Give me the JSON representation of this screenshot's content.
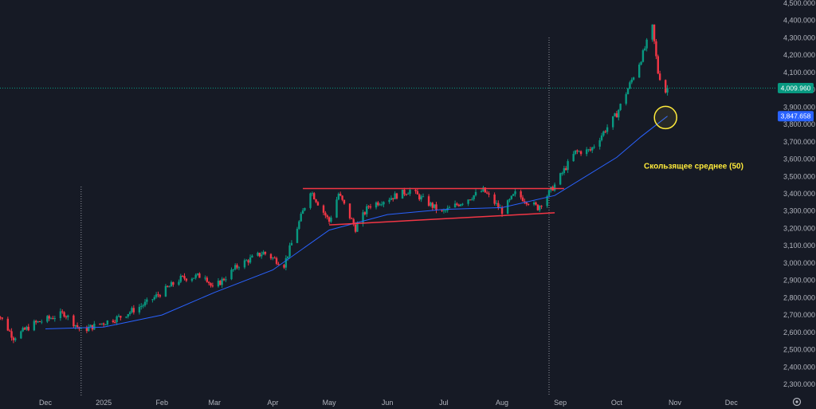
{
  "chart_data": {
    "type": "candlestick",
    "title": "",
    "xlabel": "",
    "ylabel": "",
    "ylim": [
      2250,
      4500
    ],
    "grid": false,
    "y_ticks": [
      "4,500.000",
      "4,400.000",
      "4,300.000",
      "4,200.000",
      "4,100.000",
      "4,000.000",
      "3,900.000",
      "3,800.000",
      "3,700.000",
      "3,600.000",
      "3,500.000",
      "3,400.000",
      "3,300.000",
      "3,200.000",
      "3,100.000",
      "3,000.000",
      "2,900.000",
      "2,800.000",
      "2,700.000",
      "2,600.000",
      "2,500.000",
      "2,400.000",
      "2,300.000"
    ],
    "y_tick_values": [
      4500,
      4400,
      4300,
      4200,
      4100,
      4000,
      3900,
      3800,
      3700,
      3600,
      3500,
      3400,
      3300,
      3200,
      3100,
      3000,
      2900,
      2800,
      2700,
      2600,
      2500,
      2400,
      2300
    ],
    "x_ticks": [
      "Dec",
      "2025",
      "Feb",
      "Mar",
      "Apr",
      "May",
      "Jun",
      "Jul",
      "Aug",
      "Sep",
      "Oct",
      "Nov",
      "Dec"
    ],
    "x_tick_dates": [
      "2024-12-01",
      "2025-01-01",
      "2025-02-01",
      "2025-03-01",
      "2025-04-01",
      "2025-05-01",
      "2025-06-01",
      "2025-07-01",
      "2025-08-01",
      "2025-09-01",
      "2025-10-01",
      "2025-11-01",
      "2025-12-01"
    ],
    "price_anchors": [
      [
        "2024-11-04",
        2740
      ],
      [
        "2024-11-14",
        2570
      ],
      [
        "2024-11-25",
        2650
      ],
      [
        "2024-12-11",
        2710
      ],
      [
        "2024-12-20",
        2610
      ],
      [
        "2025-01-10",
        2690
      ],
      [
        "2025-01-24",
        2770
      ],
      [
        "2025-02-11",
        2910
      ],
      [
        "2025-02-24",
        2930
      ],
      [
        "2025-02-28",
        2850
      ],
      [
        "2025-03-14",
        2990
      ],
      [
        "2025-03-27",
        3060
      ],
      [
        "2025-04-07",
        2990
      ],
      [
        "2025-04-21",
        3420
      ],
      [
        "2025-05-01",
        3240
      ],
      [
        "2025-05-06",
        3400
      ],
      [
        "2025-05-15",
        3200
      ],
      [
        "2025-05-22",
        3330
      ],
      [
        "2025-06-13",
        3420
      ],
      [
        "2025-06-30",
        3290
      ],
      [
        "2025-07-22",
        3420
      ],
      [
        "2025-08-01",
        3300
      ],
      [
        "2025-08-08",
        3400
      ],
      [
        "2025-08-20",
        3320
      ],
      [
        "2025-08-29",
        3450
      ],
      [
        "2025-09-09",
        3640
      ],
      [
        "2025-09-17",
        3650
      ],
      [
        "2025-10-01",
        3860
      ],
      [
        "2025-10-14",
        4180
      ],
      [
        "2025-10-20",
        4360
      ],
      [
        "2025-10-23",
        4100
      ],
      [
        "2025-10-27",
        3990
      ],
      [
        "2025-10-28",
        4010
      ]
    ],
    "moving_average": {
      "name": "Скользящее среднее (50)",
      "color": "#2962ff",
      "points": [
        [
          "2024-12-01",
          2620
        ],
        [
          "2025-01-01",
          2630
        ],
        [
          "2025-02-01",
          2700
        ],
        [
          "2025-03-01",
          2830
        ],
        [
          "2025-04-01",
          2960
        ],
        [
          "2025-05-01",
          3190
        ],
        [
          "2025-06-01",
          3280
        ],
        [
          "2025-07-01",
          3310
        ],
        [
          "2025-08-01",
          3320
        ],
        [
          "2025-08-29",
          3390
        ],
        [
          "2025-10-01",
          3610
        ],
        [
          "2025-10-14",
          3730
        ],
        [
          "2025-10-28",
          3847.658
        ]
      ]
    },
    "resistance_line": {
      "from": [
        "2025-04-17",
        3430
      ],
      "to": [
        "2025-09-03",
        3430
      ],
      "color": "#f23645"
    },
    "support_line": {
      "from": [
        "2025-05-01",
        3220
      ],
      "to": [
        "2025-08-29",
        3290
      ],
      "color": "#f23645"
    },
    "vertical_markers": [
      "2024-12-20",
      "2025-08-26"
    ],
    "circle_marker": {
      "date": "2025-10-27",
      "value": 3840
    },
    "current_price": {
      "label": "4,009.960",
      "value": 4009.96,
      "color": "#089981"
    },
    "ma_price": {
      "label": "3,847.658",
      "value": 3847.658,
      "color": "#2962ff"
    },
    "annotation": {
      "text": "Скользящее среднее (50)",
      "color": "#ffeb3b"
    },
    "up_color": "#089981",
    "down_color": "#f23645"
  }
}
